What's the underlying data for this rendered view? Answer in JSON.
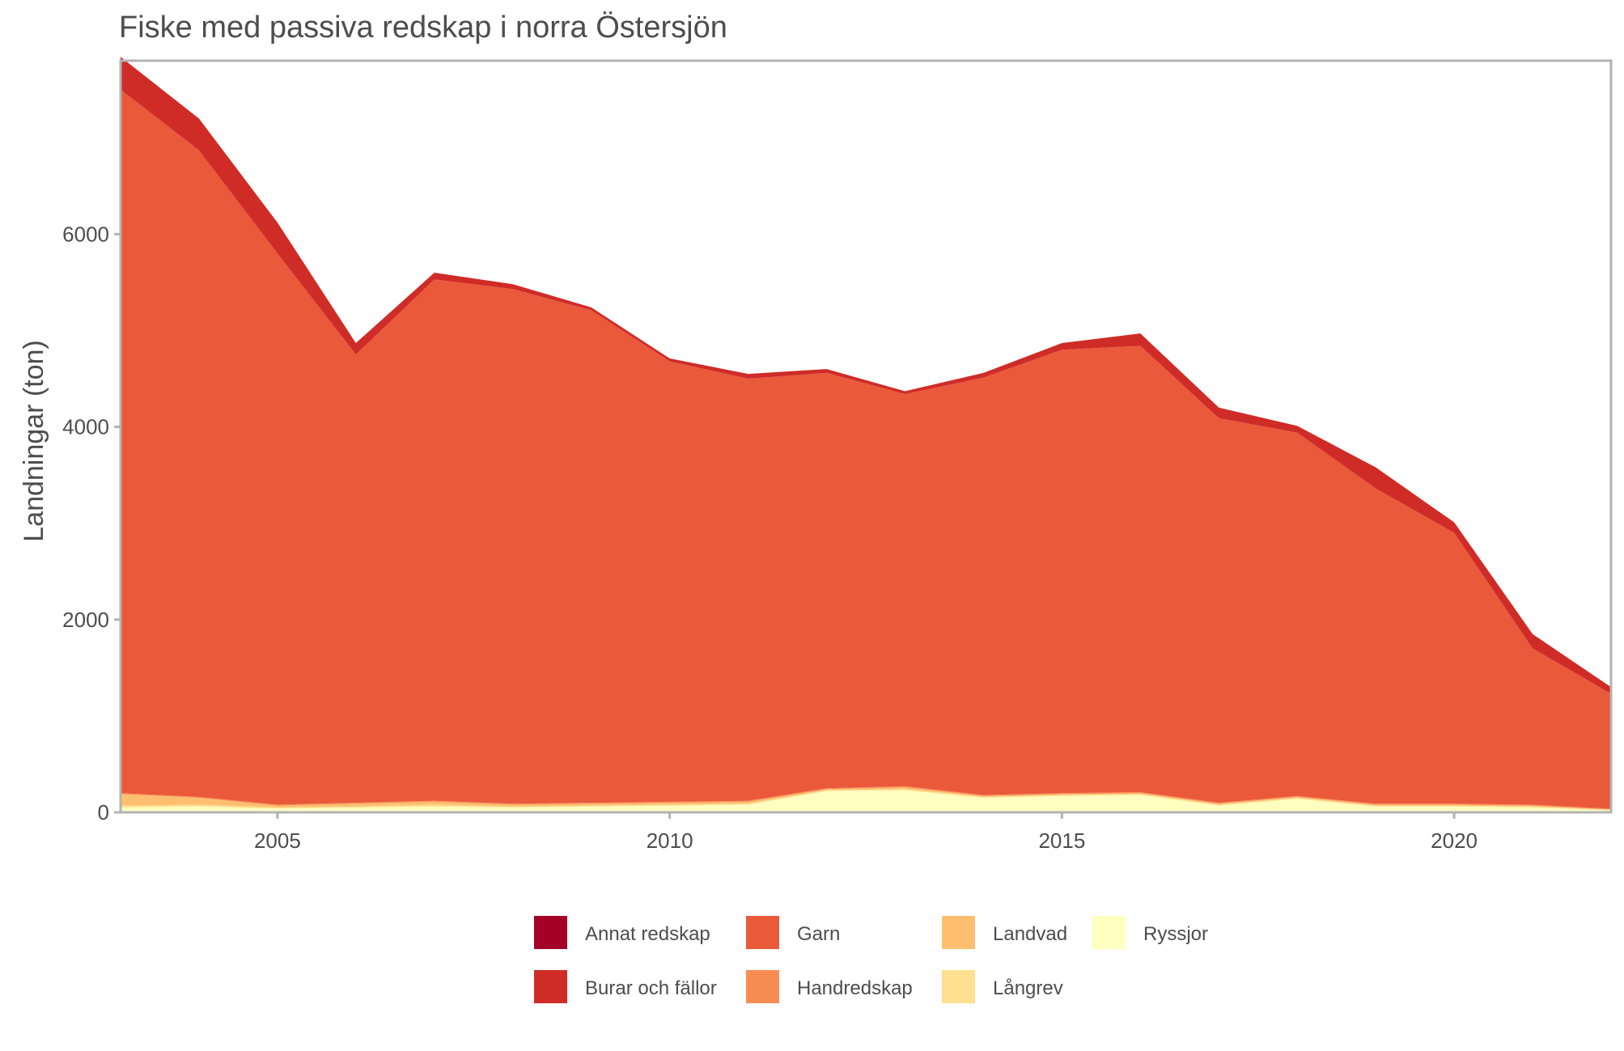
{
  "chart_data": {
    "type": "area",
    "stacked": true,
    "title": "Fiske med passiva redskap i norra Östersjön",
    "xlabel": "",
    "ylabel": "Landningar (ton)",
    "xlim": [
      2003,
      2022
    ],
    "ylim": [
      0,
      7800
    ],
    "x_ticks": [
      "2005",
      "2010",
      "2015",
      "2020"
    ],
    "x_tick_values": [
      2005,
      2010,
      2015,
      2020
    ],
    "y_ticks": [
      "0",
      "2000",
      "4000",
      "6000"
    ],
    "y_tick_values": [
      0,
      2000,
      4000,
      6000
    ],
    "grid": false,
    "legend_position": "bottom",
    "x": [
      2003,
      2004,
      2005,
      2006,
      2007,
      2008,
      2009,
      2010,
      2011,
      2012,
      2013,
      2014,
      2015,
      2016,
      2017,
      2018,
      2019,
      2020,
      2021,
      2022
    ],
    "series": [
      {
        "name": "Ryssjor",
        "color": "#ffffbf",
        "values": [
          50,
          60,
          40,
          50,
          60,
          50,
          60,
          70,
          80,
          220,
          230,
          150,
          170,
          180,
          70,
          140,
          60,
          60,
          50,
          20
        ]
      },
      {
        "name": "Långrev",
        "color": "#fee090",
        "values": [
          20,
          20,
          10,
          10,
          20,
          10,
          10,
          10,
          10,
          10,
          10,
          10,
          10,
          10,
          10,
          10,
          10,
          10,
          10,
          5
        ]
      },
      {
        "name": "Landvad",
        "color": "#fdbf6f",
        "values": [
          120,
          70,
          20,
          30,
          30,
          20,
          20,
          20,
          20,
          10,
          20,
          10,
          10,
          10,
          10,
          10,
          10,
          10,
          10,
          5
        ]
      },
      {
        "name": "Handredskap",
        "color": "#f88d52",
        "values": [
          10,
          10,
          10,
          10,
          10,
          10,
          10,
          10,
          10,
          10,
          10,
          10,
          10,
          10,
          10,
          10,
          10,
          10,
          10,
          5
        ]
      },
      {
        "name": "Garn",
        "color": "#ea593a",
        "values": [
          7300,
          6710,
          5720,
          4650,
          5410,
          5340,
          5110,
          4570,
          4380,
          4310,
          4070,
          4330,
          4600,
          4630,
          3990,
          3770,
          3270,
          2810,
          1620,
          1195
        ]
      },
      {
        "name": "Burar och fällor",
        "color": "#cf2c28",
        "values": [
          340,
          330,
          320,
          120,
          70,
          50,
          30,
          30,
          50,
          40,
          30,
          50,
          70,
          130,
          110,
          70,
          220,
          110,
          150,
          70
        ]
      },
      {
        "name": "Annat redskap",
        "color": "#a50026",
        "values": [
          0,
          0,
          0,
          0,
          0,
          0,
          0,
          0,
          0,
          0,
          0,
          0,
          0,
          0,
          0,
          0,
          0,
          0,
          0,
          0
        ]
      }
    ],
    "legend_entries": [
      {
        "name": "Annat redskap",
        "color": "#a50026"
      },
      {
        "name": "Burar och fällor",
        "color": "#cf2c28"
      },
      {
        "name": "Garn",
        "color": "#ea593a"
      },
      {
        "name": "Handredskap",
        "color": "#f88d52"
      },
      {
        "name": "Landvad",
        "color": "#fdbf6f"
      },
      {
        "name": "Långrev",
        "color": "#fee090"
      },
      {
        "name": "Ryssjor",
        "color": "#ffffbf"
      }
    ]
  }
}
